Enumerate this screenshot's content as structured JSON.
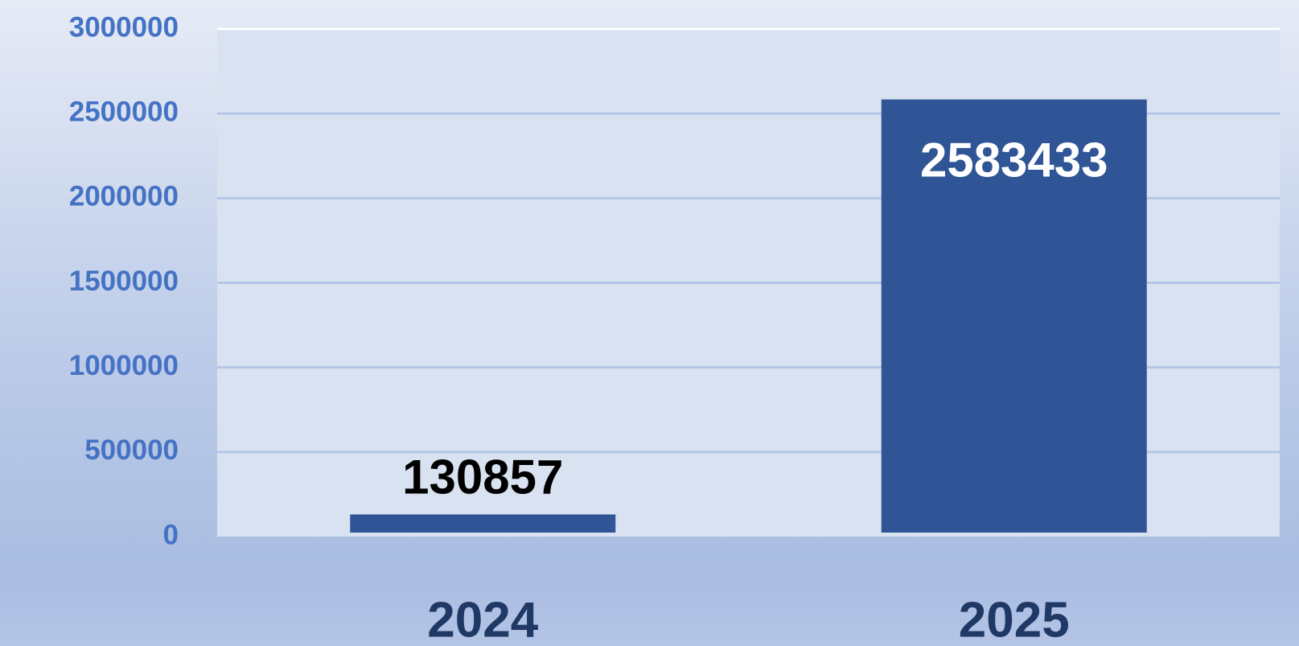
{
  "chart_data": {
    "type": "bar",
    "categories": [
      "2024",
      "2025"
    ],
    "values": [
      130857,
      2583433
    ],
    "color": "#2f5597",
    "ylim": [
      0,
      3000000
    ],
    "yticks": [
      0,
      500000,
      1000000,
      1500000,
      2000000,
      2500000,
      3000000
    ],
    "grid": true
  }
}
